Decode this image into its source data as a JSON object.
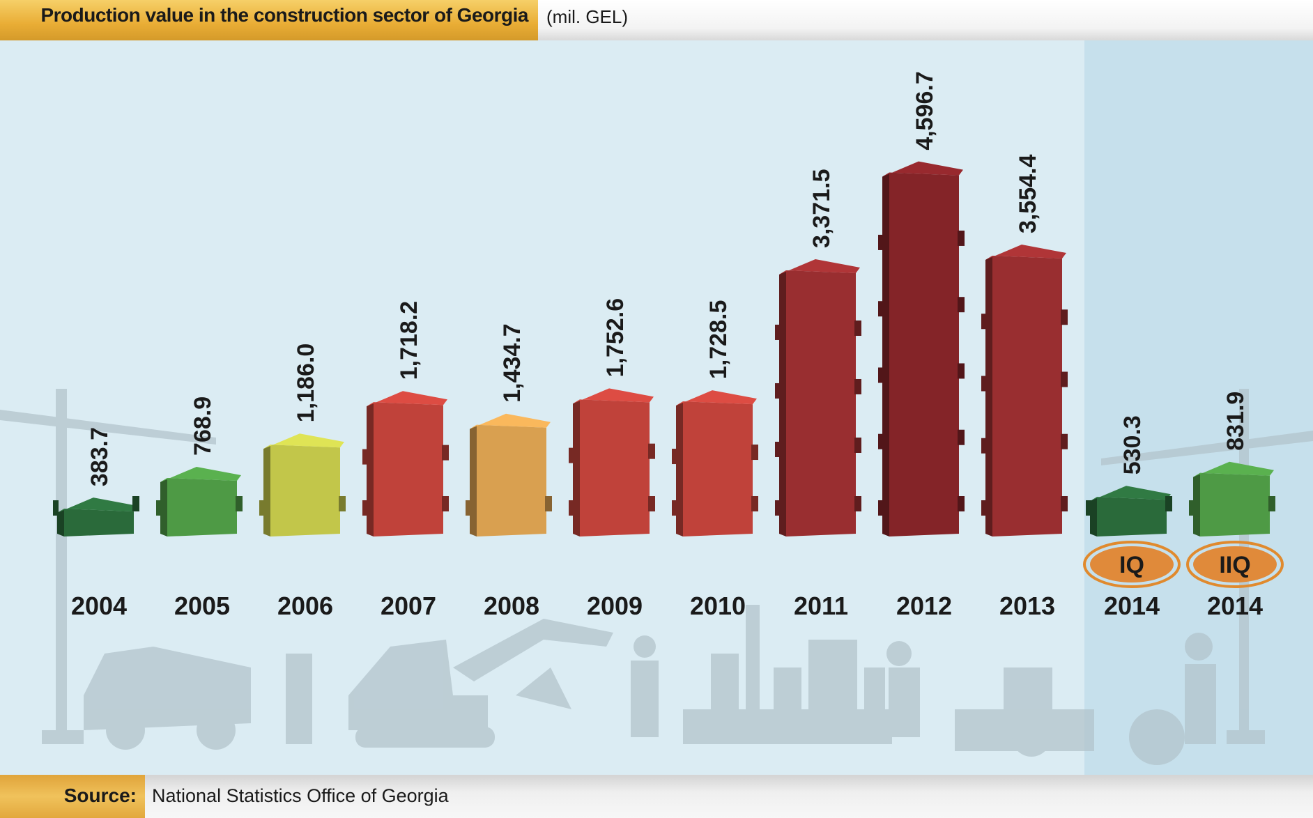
{
  "header": {
    "title": "Production value in the construction sector of Georgia",
    "unit": "(mil. GEL)"
  },
  "footer": {
    "source_label": "Source:",
    "source_text": "National Statistics Office of Georgia"
  },
  "chart_data": {
    "type": "bar",
    "title": "Production value in the construction sector of Georgia",
    "ylabel": "mil. GEL",
    "categories": [
      "2004",
      "2005",
      "2006",
      "2007",
      "2008",
      "2009",
      "2010",
      "2011",
      "2012",
      "2013",
      "2014",
      "2014"
    ],
    "quarter_labels": [
      "",
      "",
      "",
      "",
      "",
      "",
      "",
      "",
      "",
      "",
      "IQ",
      "IIQ"
    ],
    "values": [
      383.7,
      768.9,
      1186.0,
      1718.2,
      1434.7,
      1752.6,
      1728.5,
      3371.5,
      4596.7,
      3554.4,
      530.3,
      831.9
    ],
    "value_labels": [
      "383.7",
      "768.9",
      "1,186.0",
      "1,718.2",
      "1,434.7",
      "1,752.6",
      "1,728.5",
      "3,371.5",
      "4,596.7",
      "3,554.4",
      "530.3",
      "831.9"
    ],
    "colors": [
      "#2a6a3a",
      "#4e9a45",
      "#c2c64a",
      "#c0423a",
      "#d9a050",
      "#c0423a",
      "#c0423a",
      "#992e30",
      "#842428",
      "#992e30",
      "#2a6a3a",
      "#4e9a45"
    ],
    "ylim": [
      0,
      4800
    ],
    "grid": false,
    "legend": "none"
  }
}
